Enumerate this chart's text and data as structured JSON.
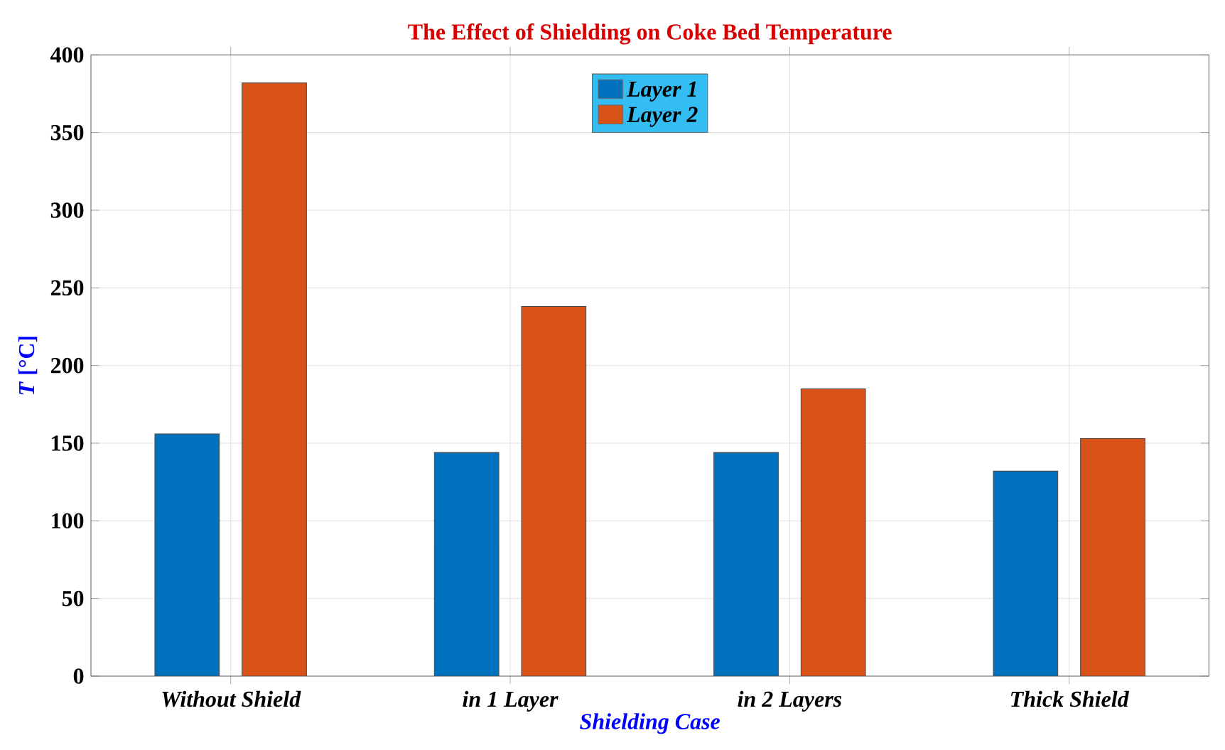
{
  "chart_data": {
    "type": "bar",
    "title": "The Effect of Shielding on Coke Bed Temperature",
    "xlabel": "Shielding Case",
    "ylabel": "*T* [°C]",
    "categories": [
      "Without Shield",
      "in 1 Layer",
      "in 2 Layers",
      "Thick Shield"
    ],
    "series": [
      {
        "name": "Layer 1",
        "color": "#0072bd",
        "values": [
          156,
          144,
          144,
          132
        ]
      },
      {
        "name": "Layer 2",
        "color": "#d95319",
        "values": [
          382,
          238,
          185,
          153
        ]
      }
    ],
    "ylim": [
      0,
      400
    ],
    "yticks": [
      0,
      50,
      100,
      150,
      200,
      250,
      300,
      350,
      400
    ],
    "grid": true,
    "legend": "top"
  }
}
